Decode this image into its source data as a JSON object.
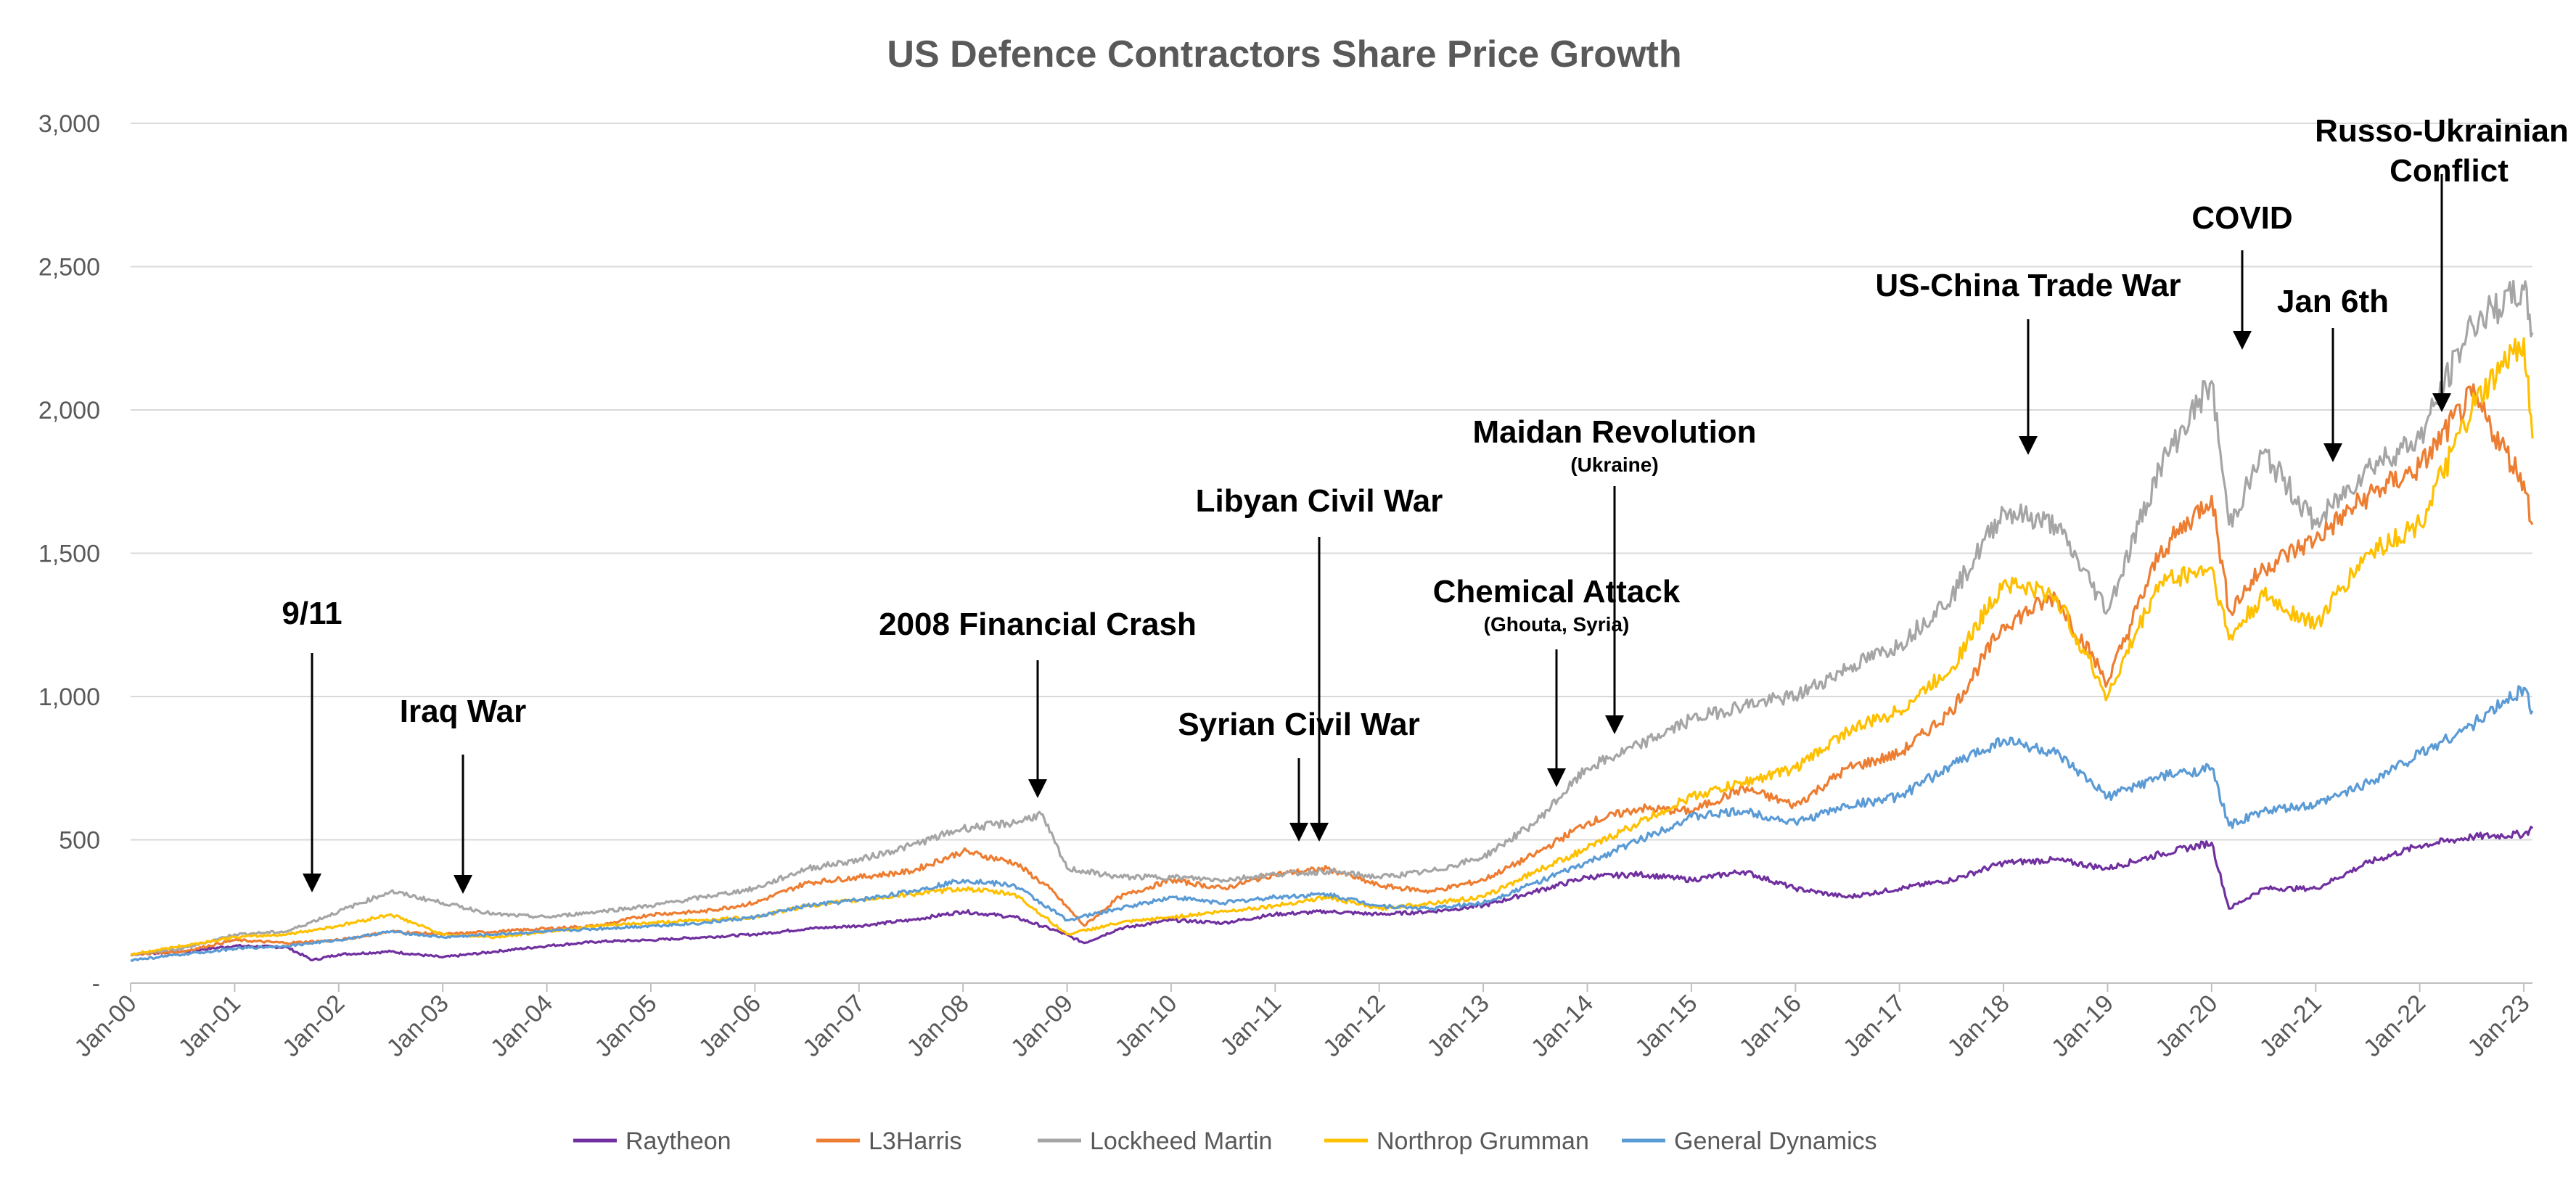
{
  "chart_data": {
    "type": "line",
    "title": "US Defence Contractors Share Price Growth",
    "xlabel": "",
    "ylabel": "",
    "ylim": [
      0,
      3000
    ],
    "y_ticks": [
      {
        "value": 0,
        "label": "-"
      },
      {
        "value": 500,
        "label": "500"
      },
      {
        "value": 1000,
        "label": "1,000"
      },
      {
        "value": 1500,
        "label": "1,500"
      },
      {
        "value": 2000,
        "label": "2,000"
      },
      {
        "value": 2500,
        "label": "2,500"
      },
      {
        "value": 3000,
        "label": "3,000"
      }
    ],
    "x_tick_labels": [
      "Jan-00",
      "Jan-01",
      "Jan-02",
      "Jan-03",
      "Jan-04",
      "Jan-05",
      "Jan-06",
      "Jan-07",
      "Jan-08",
      "Jan-09",
      "Jan-10",
      "Jan-11",
      "Jan-12",
      "Jan-13",
      "Jan-14",
      "Jan-15",
      "Jan-16",
      "Jan-17",
      "Jan-18",
      "Jan-19",
      "Jan-20",
      "Jan-21",
      "Jan-22",
      "Jan-23"
    ],
    "x_range": [
      "2000-01",
      "2023-02"
    ],
    "grid": "horizontal",
    "legend_position": "bottom",
    "series": [
      {
        "name": "Raytheon",
        "color": "#7030a0",
        "points": [
          [
            "2000-01",
            100
          ],
          [
            "2000-07",
            110
          ],
          [
            "2001-01",
            130
          ],
          [
            "2001-07",
            125
          ],
          [
            "2001-10",
            80
          ],
          [
            "2002-01",
            100
          ],
          [
            "2002-07",
            110
          ],
          [
            "2003-01",
            90
          ],
          [
            "2003-07",
            110
          ],
          [
            "2004-01",
            130
          ],
          [
            "2004-07",
            145
          ],
          [
            "2005-01",
            150
          ],
          [
            "2005-07",
            160
          ],
          [
            "2006-01",
            170
          ],
          [
            "2006-07",
            190
          ],
          [
            "2007-01",
            200
          ],
          [
            "2007-07",
            220
          ],
          [
            "2008-01",
            250
          ],
          [
            "2008-07",
            230
          ],
          [
            "2008-12",
            180
          ],
          [
            "2009-03",
            140
          ],
          [
            "2009-07",
            190
          ],
          [
            "2010-01",
            220
          ],
          [
            "2010-07",
            210
          ],
          [
            "2011-01",
            240
          ],
          [
            "2011-07",
            250
          ],
          [
            "2012-01",
            240
          ],
          [
            "2012-07",
            250
          ],
          [
            "2013-01",
            270
          ],
          [
            "2013-07",
            320
          ],
          [
            "2014-01",
            370
          ],
          [
            "2014-07",
            380
          ],
          [
            "2015-01",
            360
          ],
          [
            "2015-07",
            390
          ],
          [
            "2016-01",
            330
          ],
          [
            "2016-07",
            300
          ],
          [
            "2017-01",
            330
          ],
          [
            "2017-07",
            360
          ],
          [
            "2018-01",
            420
          ],
          [
            "2018-07",
            430
          ],
          [
            "2019-01",
            400
          ],
          [
            "2019-07",
            450
          ],
          [
            "2020-01",
            490
          ],
          [
            "2020-03",
            260
          ],
          [
            "2020-07",
            330
          ],
          [
            "2021-01",
            330
          ],
          [
            "2021-07",
            420
          ],
          [
            "2022-01",
            480
          ],
          [
            "2022-07",
            510
          ],
          [
            "2023-01",
            520
          ],
          [
            "2023-02",
            540
          ]
        ]
      },
      {
        "name": "L3Harris",
        "color": "#ed7d31",
        "points": [
          [
            "2000-01",
            100
          ],
          [
            "2000-07",
            110
          ],
          [
            "2001-01",
            150
          ],
          [
            "2001-07",
            140
          ],
          [
            "2002-01",
            150
          ],
          [
            "2002-07",
            180
          ],
          [
            "2003-01",
            170
          ],
          [
            "2003-07",
            180
          ],
          [
            "2004-01",
            190
          ],
          [
            "2004-07",
            200
          ],
          [
            "2005-01",
            240
          ],
          [
            "2005-07",
            250
          ],
          [
            "2006-01",
            280
          ],
          [
            "2006-07",
            350
          ],
          [
            "2007-01",
            370
          ],
          [
            "2007-07",
            390
          ],
          [
            "2008-01",
            460
          ],
          [
            "2008-07",
            420
          ],
          [
            "2008-11",
            330
          ],
          [
            "2009-03",
            200
          ],
          [
            "2009-07",
            300
          ],
          [
            "2010-01",
            360
          ],
          [
            "2010-07",
            330
          ],
          [
            "2011-01",
            380
          ],
          [
            "2011-07",
            400
          ],
          [
            "2012-01",
            340
          ],
          [
            "2012-07",
            320
          ],
          [
            "2013-01",
            360
          ],
          [
            "2013-07",
            450
          ],
          [
            "2014-01",
            560
          ],
          [
            "2014-07",
            610
          ],
          [
            "2015-01",
            600
          ],
          [
            "2015-07",
            680
          ],
          [
            "2016-01",
            620
          ],
          [
            "2016-07",
            750
          ],
          [
            "2017-01",
            800
          ],
          [
            "2017-07",
            950
          ],
          [
            "2018-01",
            1250
          ],
          [
            "2018-07",
            1350
          ],
          [
            "2019-01",
            1050
          ],
          [
            "2019-07",
            1500
          ],
          [
            "2020-01",
            1700
          ],
          [
            "2020-03",
            1300
          ],
          [
            "2020-07",
            1450
          ],
          [
            "2021-01",
            1550
          ],
          [
            "2021-07",
            1700
          ],
          [
            "2022-01",
            1800
          ],
          [
            "2022-07",
            2050
          ],
          [
            "2023-01",
            1750
          ],
          [
            "2023-02",
            1600
          ]
        ]
      },
      {
        "name": "Lockheed Martin",
        "color": "#a5a5a5",
        "points": [
          [
            "2000-01",
            100
          ],
          [
            "2000-07",
            120
          ],
          [
            "2001-01",
            170
          ],
          [
            "2001-07",
            180
          ],
          [
            "2002-01",
            250
          ],
          [
            "2002-07",
            320
          ],
          [
            "2003-01",
            280
          ],
          [
            "2003-07",
            240
          ],
          [
            "2004-01",
            230
          ],
          [
            "2004-07",
            250
          ],
          [
            "2005-01",
            270
          ],
          [
            "2005-07",
            300
          ],
          [
            "2006-01",
            330
          ],
          [
            "2006-07",
            400
          ],
          [
            "2007-01",
            430
          ],
          [
            "2007-07",
            480
          ],
          [
            "2008-01",
            540
          ],
          [
            "2008-07",
            560
          ],
          [
            "2008-10",
            590
          ],
          [
            "2009-01",
            400
          ],
          [
            "2009-07",
            370
          ],
          [
            "2010-01",
            370
          ],
          [
            "2010-07",
            360
          ],
          [
            "2011-01",
            380
          ],
          [
            "2011-07",
            390
          ],
          [
            "2012-01",
            370
          ],
          [
            "2012-07",
            390
          ],
          [
            "2013-01",
            440
          ],
          [
            "2013-07",
            560
          ],
          [
            "2014-01",
            750
          ],
          [
            "2014-07",
            830
          ],
          [
            "2015-01",
            920
          ],
          [
            "2015-07",
            970
          ],
          [
            "2016-01",
            1000
          ],
          [
            "2016-07",
            1100
          ],
          [
            "2017-01",
            1180
          ],
          [
            "2017-07",
            1350
          ],
          [
            "2018-01",
            1650
          ],
          [
            "2018-07",
            1600
          ],
          [
            "2019-01",
            1300
          ],
          [
            "2019-07",
            1800
          ],
          [
            "2020-01",
            2100
          ],
          [
            "2020-03",
            1600
          ],
          [
            "2020-07",
            1850
          ],
          [
            "2021-01",
            1600
          ],
          [
            "2021-07",
            1800
          ],
          [
            "2022-01",
            1900
          ],
          [
            "2022-07",
            2300
          ],
          [
            "2023-01",
            2420
          ],
          [
            "2023-02",
            2270
          ]
        ]
      },
      {
        "name": "Northrop Grumman",
        "color": "#ffc000",
        "points": [
          [
            "2000-01",
            100
          ],
          [
            "2000-07",
            130
          ],
          [
            "2001-01",
            160
          ],
          [
            "2001-07",
            170
          ],
          [
            "2002-01",
            200
          ],
          [
            "2002-07",
            240
          ],
          [
            "2003-01",
            170
          ],
          [
            "2003-07",
            160
          ],
          [
            "2004-01",
            180
          ],
          [
            "2004-07",
            200
          ],
          [
            "2005-01",
            210
          ],
          [
            "2005-07",
            220
          ],
          [
            "2006-01",
            230
          ],
          [
            "2006-07",
            270
          ],
          [
            "2007-01",
            290
          ],
          [
            "2007-07",
            310
          ],
          [
            "2008-01",
            330
          ],
          [
            "2008-07",
            310
          ],
          [
            "2009-01",
            170
          ],
          [
            "2009-07",
            210
          ],
          [
            "2010-01",
            230
          ],
          [
            "2010-07",
            250
          ],
          [
            "2011-01",
            270
          ],
          [
            "2011-07",
            300
          ],
          [
            "2012-01",
            260
          ],
          [
            "2012-07",
            280
          ],
          [
            "2013-01",
            300
          ],
          [
            "2013-07",
            390
          ],
          [
            "2014-01",
            470
          ],
          [
            "2014-07",
            560
          ],
          [
            "2015-01",
            650
          ],
          [
            "2015-07",
            700
          ],
          [
            "2016-01",
            750
          ],
          [
            "2016-07",
            880
          ],
          [
            "2017-01",
            950
          ],
          [
            "2017-07",
            1100
          ],
          [
            "2018-01",
            1400
          ],
          [
            "2018-07",
            1350
          ],
          [
            "2019-01",
            1000
          ],
          [
            "2019-07",
            1400
          ],
          [
            "2020-01",
            1450
          ],
          [
            "2020-03",
            1200
          ],
          [
            "2020-07",
            1350
          ],
          [
            "2021-01",
            1250
          ],
          [
            "2021-07",
            1500
          ],
          [
            "2022-01",
            1600
          ],
          [
            "2022-07",
            2000
          ],
          [
            "2023-01",
            2250
          ],
          [
            "2023-02",
            1900
          ]
        ]
      },
      {
        "name": "General Dynamics",
        "color": "#5b9bd5",
        "points": [
          [
            "2000-01",
            80
          ],
          [
            "2000-07",
            100
          ],
          [
            "2001-01",
            120
          ],
          [
            "2001-07",
            130
          ],
          [
            "2002-01",
            150
          ],
          [
            "2002-07",
            180
          ],
          [
            "2003-01",
            160
          ],
          [
            "2003-07",
            170
          ],
          [
            "2004-01",
            180
          ],
          [
            "2004-07",
            190
          ],
          [
            "2005-01",
            200
          ],
          [
            "2005-07",
            210
          ],
          [
            "2006-01",
            230
          ],
          [
            "2006-07",
            270
          ],
          [
            "2007-01",
            290
          ],
          [
            "2007-07",
            320
          ],
          [
            "2008-01",
            360
          ],
          [
            "2008-07",
            340
          ],
          [
            "2009-01",
            220
          ],
          [
            "2009-07",
            260
          ],
          [
            "2010-01",
            300
          ],
          [
            "2010-07",
            280
          ],
          [
            "2011-01",
            300
          ],
          [
            "2011-07",
            310
          ],
          [
            "2012-01",
            270
          ],
          [
            "2012-07",
            260
          ],
          [
            "2013-01",
            280
          ],
          [
            "2013-07",
            350
          ],
          [
            "2014-01",
            420
          ],
          [
            "2014-07",
            500
          ],
          [
            "2015-01",
            580
          ],
          [
            "2015-07",
            600
          ],
          [
            "2016-01",
            560
          ],
          [
            "2016-07",
            620
          ],
          [
            "2017-01",
            650
          ],
          [
            "2017-07",
            760
          ],
          [
            "2018-01",
            850
          ],
          [
            "2018-07",
            800
          ],
          [
            "2019-01",
            650
          ],
          [
            "2019-07",
            720
          ],
          [
            "2020-01",
            750
          ],
          [
            "2020-03",
            550
          ],
          [
            "2020-07",
            600
          ],
          [
            "2021-01",
            620
          ],
          [
            "2021-07",
            700
          ],
          [
            "2022-01",
            800
          ],
          [
            "2022-07",
            900
          ],
          [
            "2023-01",
            1030
          ],
          [
            "2023-02",
            950
          ]
        ]
      }
    ],
    "annotations": [
      {
        "label": "9/11",
        "sub": "",
        "date": "2001-09"
      },
      {
        "label": "Iraq War",
        "sub": "",
        "date": "2003-03"
      },
      {
        "label": "2008 Financial Crash",
        "sub": "",
        "date": "2008-09"
      },
      {
        "label": "Libyan Civil War",
        "sub": "",
        "date": "2011-05"
      },
      {
        "label": "Syrian Civil War",
        "sub": "",
        "date": "2011-03"
      },
      {
        "label": "Chemical Attack",
        "sub": "(Ghouta, Syria)",
        "date": "2013-08"
      },
      {
        "label": "Maidan Revolution",
        "sub": "(Ukraine)",
        "date": "2014-02"
      },
      {
        "label": "US-China Trade War",
        "sub": "",
        "date": "2018-03"
      },
      {
        "label": "COVID",
        "sub": "",
        "date": "2020-03"
      },
      {
        "label": "Jan 6th",
        "sub": "",
        "date": "2021-01"
      },
      {
        "label": "Russo-Ukrainian",
        "sub": "Conflict",
        "date": "2022-02"
      }
    ]
  }
}
